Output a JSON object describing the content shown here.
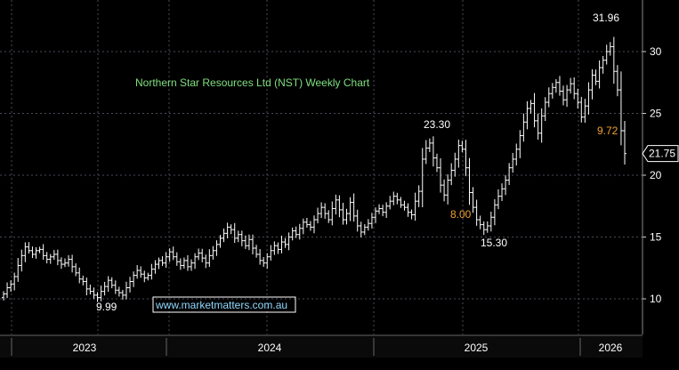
{
  "chart_data": {
    "type": "ohlc",
    "title": "Northern Star Resources Ltd (NST) Weekly Chart",
    "watermark": "www.marketmatters.com.au",
    "ylim": [
      8,
      33
    ],
    "yticks": [
      10,
      15,
      20,
      25,
      30
    ],
    "x_labels": [
      "2023",
      "2024",
      "2025",
      "2026"
    ],
    "last_price": "21.75",
    "grid": true,
    "colors": {
      "bars": "#ffffff",
      "grid": "#4a4a5a",
      "title": "#7fe07f",
      "orange_note": "#f0a030",
      "watermark_border": "#ffffff"
    },
    "annotations": [
      {
        "text": "31.96",
        "color": "#ffffff"
      },
      {
        "text": "23.30",
        "color": "#ffffff"
      },
      {
        "text": "9.99",
        "color": "#ffffff"
      },
      {
        "text": "15.30",
        "color": "#ffffff"
      },
      {
        "text": "8.00",
        "color": "#f0a030"
      },
      {
        "text": "9.72",
        "color": "#f0a030"
      }
    ],
    "series": [
      {
        "closes": [
          10.4,
          10.9,
          11.2,
          11.8,
          12.7,
          13.5,
          14.2,
          13.9,
          13.6,
          13.9,
          14.0,
          13.5,
          13.2,
          13.4,
          13.6,
          13.1,
          12.8,
          12.9,
          13.2,
          12.6,
          12.1,
          11.6,
          11.4,
          10.8,
          10.6,
          10.3,
          10.1,
          10.6,
          11.0,
          11.5,
          11.1,
          10.7,
          10.5,
          10.3,
          10.9,
          11.4,
          11.9,
          12.3,
          12.0,
          11.7,
          11.9,
          12.4,
          12.8,
          13.1,
          12.9,
          13.4,
          13.8,
          13.4,
          13.0,
          12.7,
          13.1,
          12.6,
          12.9,
          13.4,
          13.7,
          13.3,
          12.9,
          13.5,
          13.9,
          14.4,
          14.9,
          15.3,
          15.8,
          15.6,
          14.9,
          15.2,
          14.7,
          14.3,
          14.8,
          14.1,
          13.6,
          13.1,
          12.9,
          13.4,
          13.9,
          14.3,
          14.0,
          14.6,
          14.4,
          15.0,
          15.5,
          15.2,
          15.7,
          16.2,
          16.0,
          15.8,
          16.4,
          16.9,
          17.4,
          16.9,
          16.4,
          17.3,
          18.0,
          17.2,
          16.4,
          16.9,
          17.8,
          16.7,
          15.9,
          15.4,
          15.8,
          16.1,
          16.6,
          17.1,
          17.3,
          17.0,
          17.5,
          17.9,
          18.3,
          18.0,
          17.6,
          17.4,
          17.0,
          16.8,
          17.9,
          18.7,
          21.3,
          22.2,
          22.6,
          21.4,
          20.6,
          19.2,
          18.4,
          19.6,
          20.4,
          21.3,
          22.4,
          22.1,
          20.6,
          18.6,
          17.4,
          16.4,
          16.0,
          15.6,
          15.9,
          16.6,
          17.6,
          18.3,
          18.9,
          19.6,
          20.6,
          21.3,
          22.1,
          23.2,
          24.3,
          25.4,
          25.8,
          24.4,
          23.4,
          24.8,
          25.9,
          26.6,
          27.1,
          27.5,
          26.8,
          26.1,
          26.9,
          27.4,
          26.6,
          25.9,
          24.7,
          25.6,
          26.9,
          28.1,
          27.6,
          28.7,
          29.3,
          30.0,
          30.4,
          28.4,
          26.9,
          23.6,
          21.75
        ]
      }
    ]
  }
}
